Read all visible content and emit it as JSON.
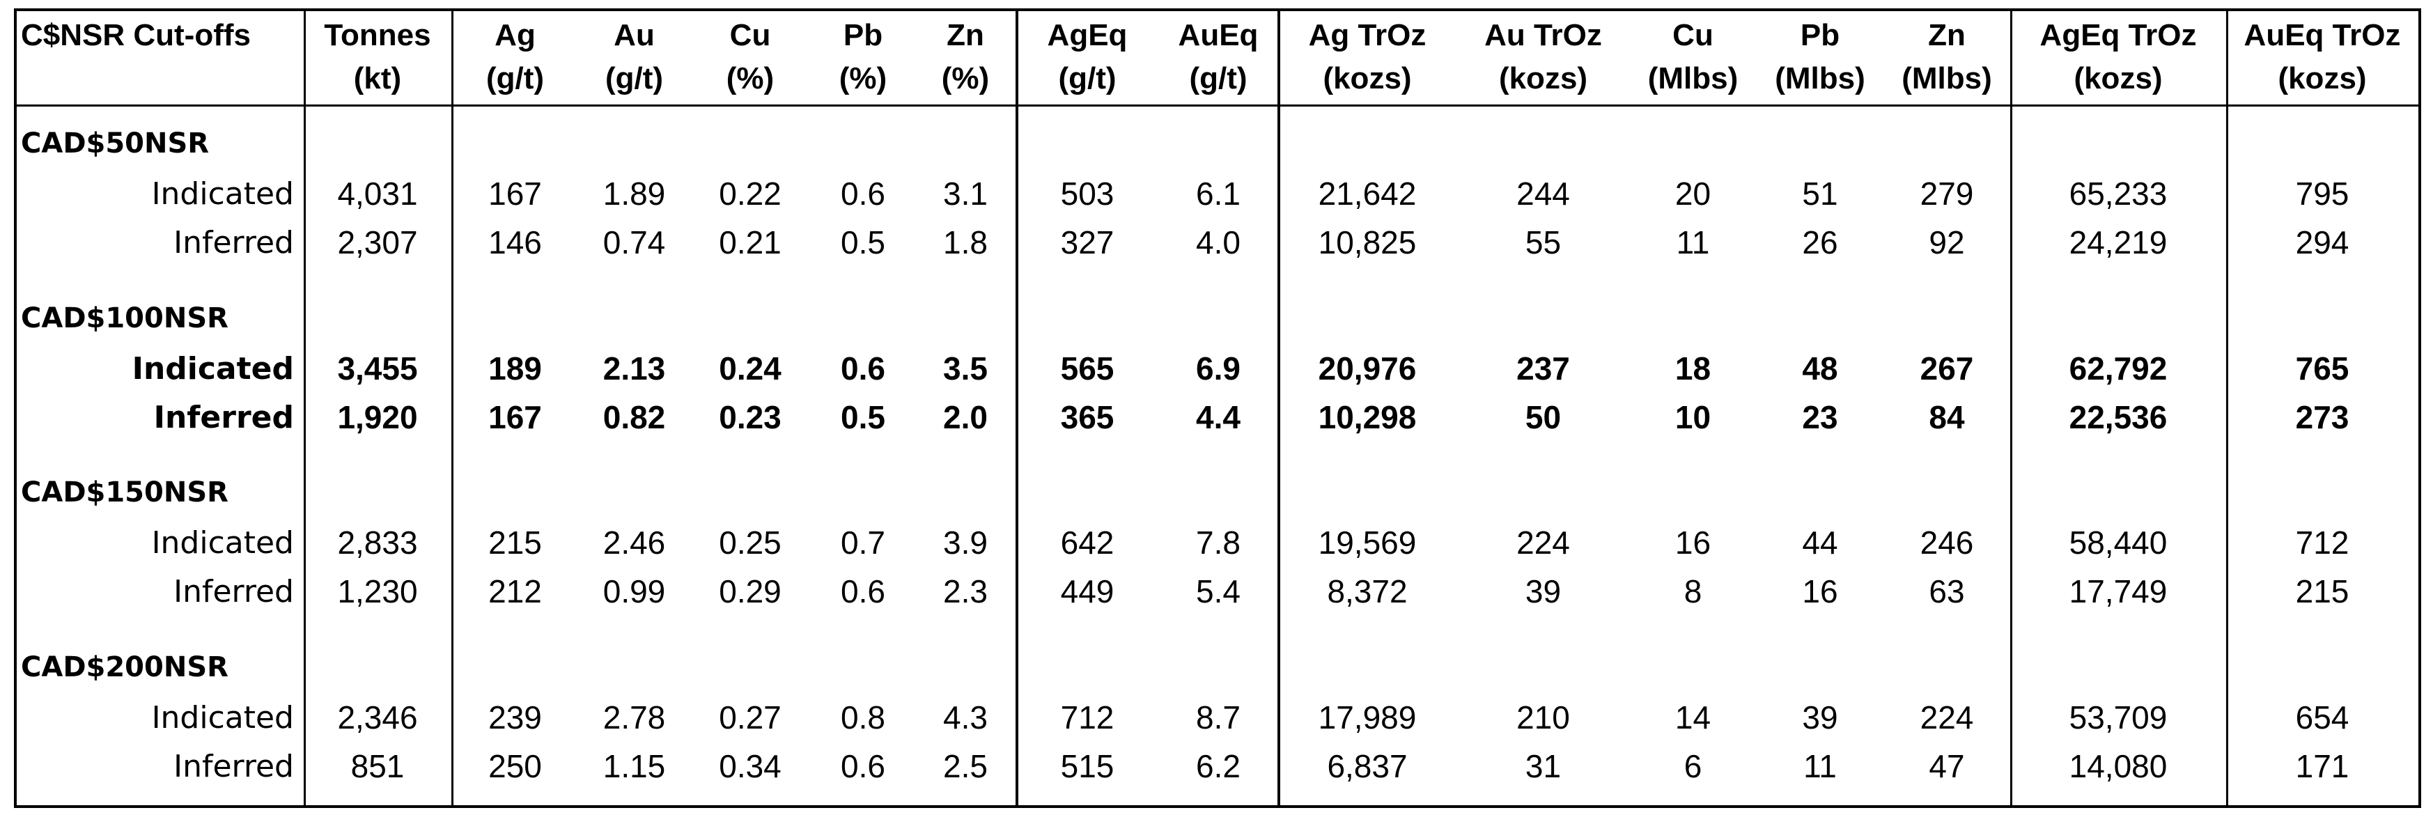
{
  "table": {
    "headers": [
      {
        "l1": "C$NSR Cut-offs",
        "l2": ""
      },
      {
        "l1": "Tonnes",
        "l2": "(kt)"
      },
      {
        "l1": "Ag",
        "l2": "(g/t)"
      },
      {
        "l1": "Au",
        "l2": "(g/t)"
      },
      {
        "l1": "Cu",
        "l2": "(%)"
      },
      {
        "l1": "Pb",
        "l2": "(%)"
      },
      {
        "l1": "Zn",
        "l2": "(%)"
      },
      {
        "l1": "AgEq",
        "l2": "(g/t)"
      },
      {
        "l1": "AuEq",
        "l2": "(g/t)"
      },
      {
        "l1": "Ag TrOz",
        "l2": "(kozs)"
      },
      {
        "l1": "Au TrOz",
        "l2": "(kozs)"
      },
      {
        "l1": "Cu",
        "l2": "(Mlbs)"
      },
      {
        "l1": "Pb",
        "l2": "(Mlbs)"
      },
      {
        "l1": "Zn",
        "l2": "(Mlbs)"
      },
      {
        "l1": "AgEq TrOz",
        "l2": "(kozs)"
      },
      {
        "l1": "AuEq TrOz",
        "l2": "(kozs)"
      }
    ],
    "groups": [
      {
        "name": "CAD$50NSR",
        "bold": false,
        "rows": [
          {
            "label": "Indicated",
            "values": [
              "4,031",
              "167",
              "1.89",
              "0.22",
              "0.6",
              "3.1",
              "503",
              "6.1",
              "21,642",
              "244",
              "20",
              "51",
              "279",
              "65,233",
              "795"
            ]
          },
          {
            "label": "Inferred",
            "values": [
              "2,307",
              "146",
              "0.74",
              "0.21",
              "0.5",
              "1.8",
              "327",
              "4.0",
              "10,825",
              "55",
              "11",
              "26",
              "92",
              "24,219",
              "294"
            ]
          }
        ]
      },
      {
        "name": "CAD$100NSR",
        "bold": true,
        "rows": [
          {
            "label": "Indicated",
            "values": [
              "3,455",
              "189",
              "2.13",
              "0.24",
              "0.6",
              "3.5",
              "565",
              "6.9",
              "20,976",
              "237",
              "18",
              "48",
              "267",
              "62,792",
              "765"
            ]
          },
          {
            "label": "Inferred",
            "values": [
              "1,920",
              "167",
              "0.82",
              "0.23",
              "0.5",
              "2.0",
              "365",
              "4.4",
              "10,298",
              "50",
              "10",
              "23",
              "84",
              "22,536",
              "273"
            ]
          }
        ]
      },
      {
        "name": "CAD$150NSR",
        "bold": false,
        "rows": [
          {
            "label": "Indicated",
            "values": [
              "2,833",
              "215",
              "2.46",
              "0.25",
              "0.7",
              "3.9",
              "642",
              "7.8",
              "19,569",
              "224",
              "16",
              "44",
              "246",
              "58,440",
              "712"
            ]
          },
          {
            "label": "Inferred",
            "values": [
              "1,230",
              "212",
              "0.99",
              "0.29",
              "0.6",
              "2.3",
              "449",
              "5.4",
              "8,372",
              "39",
              "8",
              "16",
              "63",
              "17,749",
              "215"
            ]
          }
        ]
      },
      {
        "name": "CAD$200NSR",
        "bold": false,
        "rows": [
          {
            "label": "Indicated",
            "values": [
              "2,346",
              "239",
              "2.78",
              "0.27",
              "0.8",
              "4.3",
              "712",
              "8.7",
              "17,989",
              "210",
              "14",
              "39",
              "224",
              "53,709",
              "654"
            ]
          },
          {
            "label": "Inferred",
            "values": [
              "851",
              "250",
              "1.15",
              "0.34",
              "0.6",
              "2.5",
              "515",
              "6.2",
              "6,837",
              "31",
              "6",
              "11",
              "47",
              "14,080",
              "171"
            ]
          }
        ]
      }
    ]
  }
}
